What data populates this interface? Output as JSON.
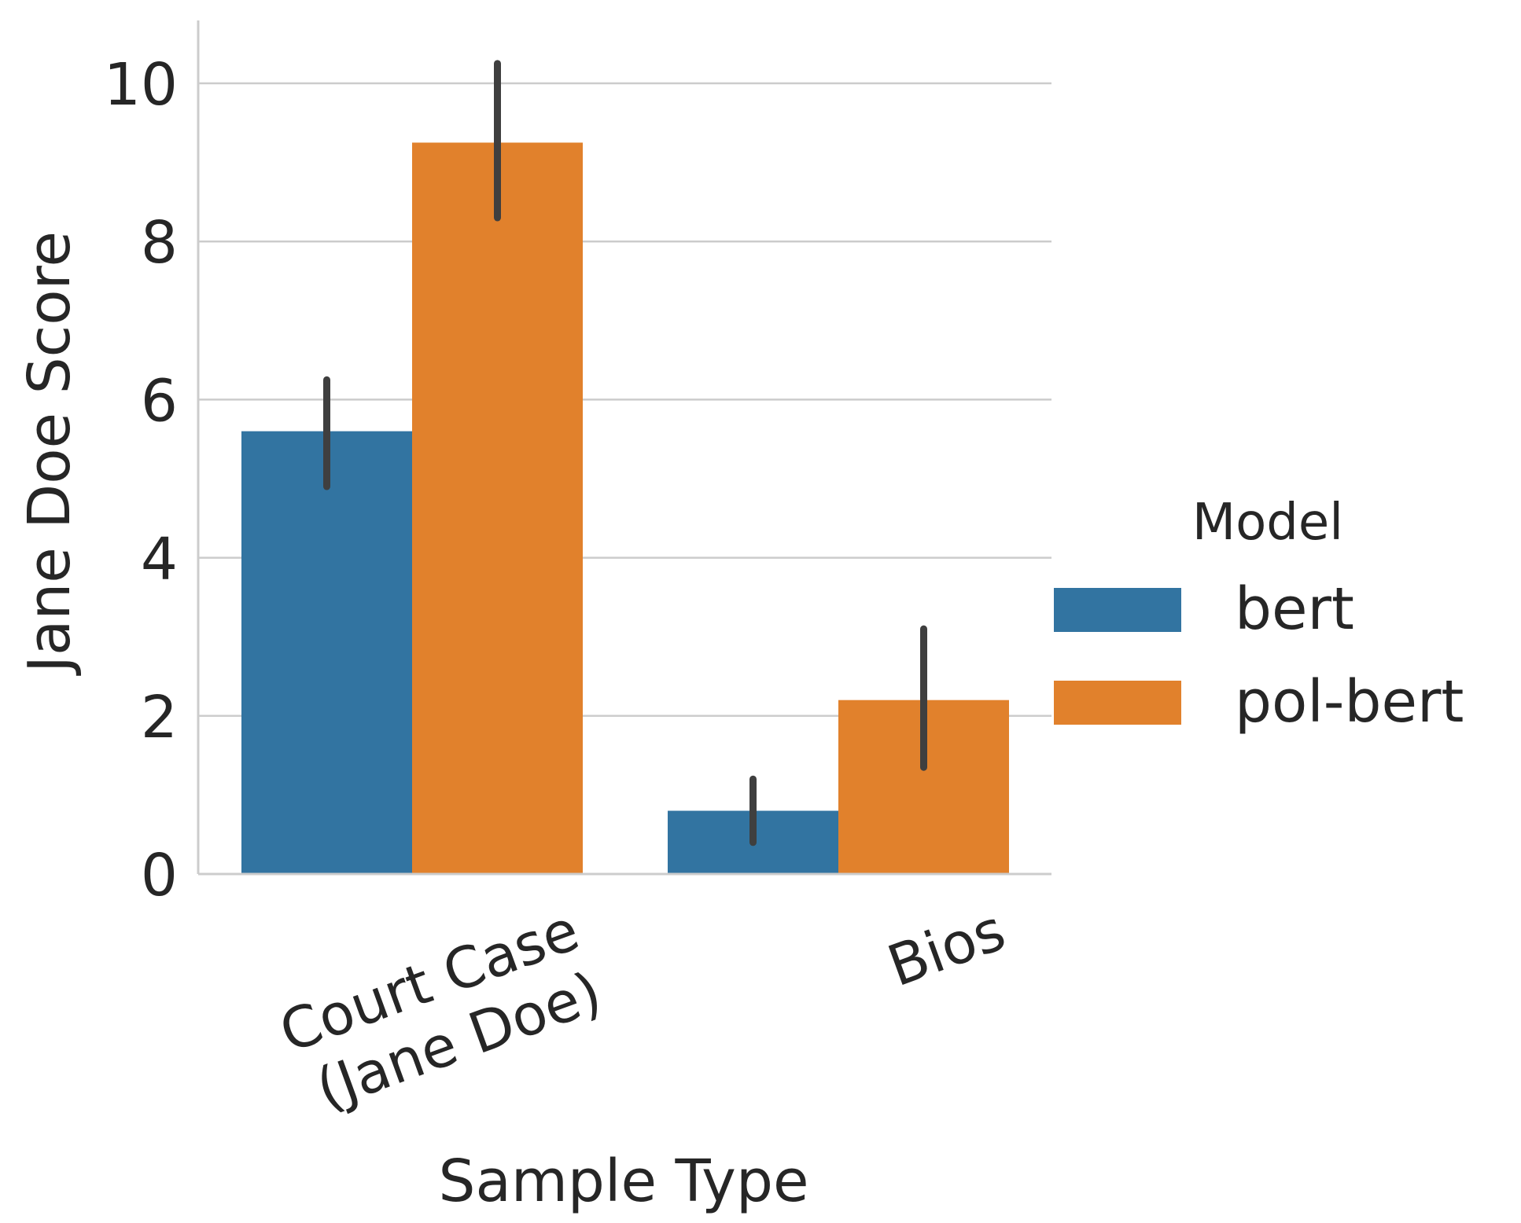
{
  "chart_data": {
    "type": "bar",
    "title": "",
    "xlabel": "Sample Type",
    "ylabel": "Jane Doe Score",
    "categories": [
      [
        "Court Case",
        "(Jane Doe)"
      ],
      [
        "Bios"
      ]
    ],
    "ylim": [
      0,
      10.8
    ],
    "yticks": [
      0,
      2,
      4,
      6,
      8,
      10
    ],
    "grid": true,
    "legend": {
      "title": "Model",
      "position": "right"
    },
    "series": [
      {
        "name": "bert",
        "color": "#3274a1",
        "values": [
          5.6,
          0.8
        ],
        "ci_low": [
          4.9,
          0.4
        ],
        "ci_high": [
          6.25,
          1.2
        ]
      },
      {
        "name": "pol-bert",
        "color": "#e1812c",
        "values": [
          9.25,
          2.2
        ],
        "ci_low": [
          8.3,
          1.35
        ],
        "ci_high": [
          10.25,
          3.1
        ]
      }
    ],
    "errorbar_color": "#3f3f3f",
    "grid_color": "#cccccc",
    "axis_color": "#cccccc"
  }
}
